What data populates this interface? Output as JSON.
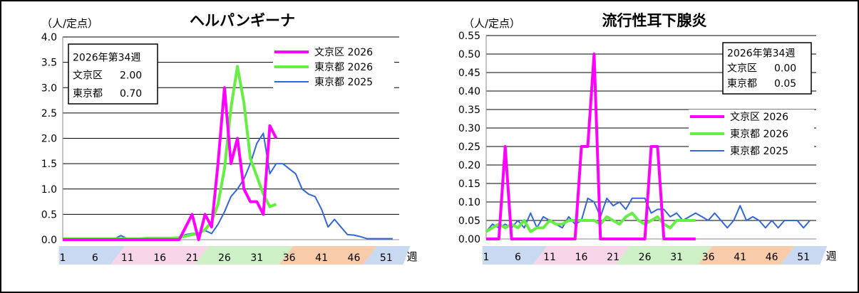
{
  "charts": [
    {
      "title": "ヘルパンギーナ",
      "unit": "（人/定点）",
      "week_suffix": "週",
      "infobox": {
        "heading": "2026年第34週",
        "rows": [
          {
            "label": "文京区",
            "value": "2.00"
          },
          {
            "label": "東京都",
            "value": "0.70"
          }
        ]
      },
      "chart_data": {
        "type": "line",
        "ylim": [
          0,
          4.0
        ],
        "yticks": [
          "0.0",
          "0.5",
          "1.0",
          "1.5",
          "2.0",
          "2.5",
          "3.0",
          "3.5",
          "4.0"
        ],
        "xlim": [
          1,
          53
        ],
        "xticks": [
          1,
          6,
          11,
          16,
          21,
          26,
          31,
          36,
          41,
          46,
          51
        ],
        "grid": true,
        "legend": "top-right",
        "series": [
          {
            "name": "文京区 2026",
            "color": "#ff00ff",
            "width": 4,
            "x": [
              1,
              2,
              3,
              4,
              5,
              6,
              7,
              8,
              9,
              10,
              11,
              12,
              13,
              14,
              15,
              16,
              17,
              18,
              19,
              20,
              21,
              22,
              23,
              24,
              25,
              26,
              27,
              28,
              29,
              30,
              31,
              32,
              33,
              34
            ],
            "y": [
              0,
              0,
              0,
              0,
              0,
              0,
              0,
              0,
              0,
              0,
              0,
              0,
              0,
              0,
              0,
              0,
              0,
              0,
              0,
              0.25,
              0.5,
              0,
              0.5,
              0.25,
              1.5,
              3.0,
              1.5,
              2.0,
              1.0,
              0.75,
              0.75,
              0.5,
              2.25,
              2.0
            ]
          },
          {
            "name": "東京都 2026",
            "color": "#66ee44",
            "width": 4,
            "x": [
              1,
              2,
              3,
              4,
              5,
              6,
              7,
              8,
              9,
              10,
              11,
              12,
              13,
              14,
              15,
              16,
              17,
              18,
              19,
              20,
              21,
              22,
              23,
              24,
              25,
              26,
              27,
              28,
              29,
              30,
              31,
              32,
              33,
              34
            ],
            "y": [
              0.02,
              0.02,
              0.02,
              0.02,
              0.02,
              0.02,
              0.02,
              0.02,
              0.02,
              0.02,
              0.02,
              0.02,
              0.02,
              0.03,
              0.03,
              0.03,
              0.03,
              0.03,
              0.04,
              0.07,
              0.1,
              0.12,
              0.2,
              0.35,
              0.7,
              1.4,
              2.6,
              3.42,
              2.7,
              1.6,
              1.25,
              0.9,
              0.65,
              0.7
            ]
          },
          {
            "name": "東京都 2025",
            "color": "#3366dd",
            "width": 2,
            "x": [
              1,
              2,
              3,
              4,
              5,
              6,
              7,
              8,
              9,
              10,
              11,
              12,
              13,
              14,
              15,
              16,
              17,
              18,
              19,
              20,
              21,
              22,
              23,
              24,
              25,
              26,
              27,
              28,
              29,
              30,
              31,
              32,
              33,
              34,
              35,
              36,
              37,
              38,
              39,
              40,
              41,
              42,
              43,
              44,
              45,
              46,
              47,
              48,
              49,
              50,
              51,
              52
            ],
            "y": [
              0,
              0,
              0,
              0,
              0,
              0.01,
              0.01,
              0.01,
              0.02,
              0.08,
              0.02,
              0.01,
              0.02,
              0.02,
              0.02,
              0.03,
              0.02,
              0.02,
              0.05,
              0.1,
              0.12,
              0.13,
              0.18,
              0.12,
              0.3,
              0.55,
              0.85,
              1.0,
              1.2,
              1.5,
              1.9,
              2.1,
              1.3,
              1.5,
              1.5,
              1.4,
              1.3,
              1.0,
              0.9,
              0.85,
              0.6,
              0.25,
              0.4,
              0.25,
              0.1,
              0.09,
              0.06,
              0.02,
              0.02,
              0.02,
              0.02,
              0.02
            ]
          }
        ]
      }
    },
    {
      "title": "流行性耳下腺炎",
      "unit": "（人/定点）",
      "week_suffix": "週",
      "infobox": {
        "heading": "2026年第34週",
        "rows": [
          {
            "label": "文京区",
            "value": "0.00"
          },
          {
            "label": "東京都",
            "value": "0.05"
          }
        ]
      },
      "chart_data": {
        "type": "line",
        "ylim": [
          0,
          0.55
        ],
        "yticks": [
          "0.00",
          "0.05",
          "0.10",
          "0.15",
          "0.20",
          "0.25",
          "0.30",
          "0.35",
          "0.40",
          "0.45",
          "0.50",
          "0.55"
        ],
        "xlim": [
          1,
          53
        ],
        "xticks": [
          1,
          6,
          11,
          16,
          21,
          26,
          31,
          36,
          41,
          46,
          51
        ],
        "grid": true,
        "legend": "right",
        "series": [
          {
            "name": "文京区 2026",
            "color": "#ff00ff",
            "width": 4,
            "x": [
              1,
              2,
              3,
              4,
              5,
              6,
              7,
              8,
              9,
              10,
              11,
              12,
              13,
              14,
              15,
              16,
              17,
              18,
              19,
              20,
              21,
              22,
              23,
              24,
              25,
              26,
              27,
              28,
              29,
              30,
              31,
              32,
              33,
              34
            ],
            "y": [
              0,
              0,
              0,
              0.25,
              0,
              0,
              0,
              0,
              0,
              0,
              0,
              0,
              0,
              0,
              0,
              0.25,
              0.25,
              0.5,
              0,
              0,
              0,
              0,
              0,
              0,
              0,
              0,
              0.25,
              0.25,
              0,
              0,
              0,
              0,
              0,
              0
            ]
          },
          {
            "name": "東京都 2026",
            "color": "#66ee44",
            "width": 4,
            "x": [
              1,
              2,
              3,
              4,
              5,
              6,
              7,
              8,
              9,
              10,
              11,
              12,
              13,
              14,
              15,
              16,
              17,
              18,
              19,
              20,
              21,
              22,
              23,
              24,
              25,
              26,
              27,
              28,
              29,
              30,
              31,
              32,
              33,
              34
            ],
            "y": [
              0.02,
              0.03,
              0.04,
              0.03,
              0.04,
              0.03,
              0.05,
              0.02,
              0.03,
              0.03,
              0.05,
              0.04,
              0.04,
              0.05,
              0.05,
              0.05,
              0.05,
              0.05,
              0.04,
              0.06,
              0.05,
              0.04,
              0.06,
              0.07,
              0.05,
              0.04,
              0.05,
              0.06,
              0.04,
              0.03,
              0.05,
              0.05,
              0.05,
              0.05
            ]
          },
          {
            "name": "東京都 2025",
            "color": "#3366dd",
            "width": 2,
            "x": [
              1,
              2,
              3,
              4,
              5,
              6,
              7,
              8,
              9,
              10,
              11,
              12,
              13,
              14,
              15,
              16,
              17,
              18,
              19,
              20,
              21,
              22,
              23,
              24,
              25,
              26,
              27,
              28,
              29,
              30,
              31,
              32,
              33,
              34,
              35,
              36,
              37,
              38,
              39,
              40,
              41,
              42,
              43,
              44,
              45,
              46,
              47,
              48,
              49,
              50,
              51,
              52
            ],
            "y": [
              0.02,
              0.04,
              0.03,
              0.04,
              0.03,
              0.05,
              0.03,
              0.07,
              0.03,
              0.06,
              0.05,
              0.04,
              0.03,
              0.06,
              0.04,
              0.05,
              0.11,
              0.1,
              0.06,
              0.11,
              0.09,
              0.1,
              0.08,
              0.11,
              0.11,
              0.11,
              0.07,
              0.08,
              0.08,
              0.06,
              0.07,
              0.05,
              0.06,
              0.07,
              0.06,
              0.05,
              0.07,
              0.05,
              0.03,
              0.05,
              0.09,
              0.05,
              0.06,
              0.05,
              0.03,
              0.05,
              0.03,
              0.05,
              0.05,
              0.05,
              0.03,
              0.05
            ]
          }
        ]
      }
    }
  ]
}
